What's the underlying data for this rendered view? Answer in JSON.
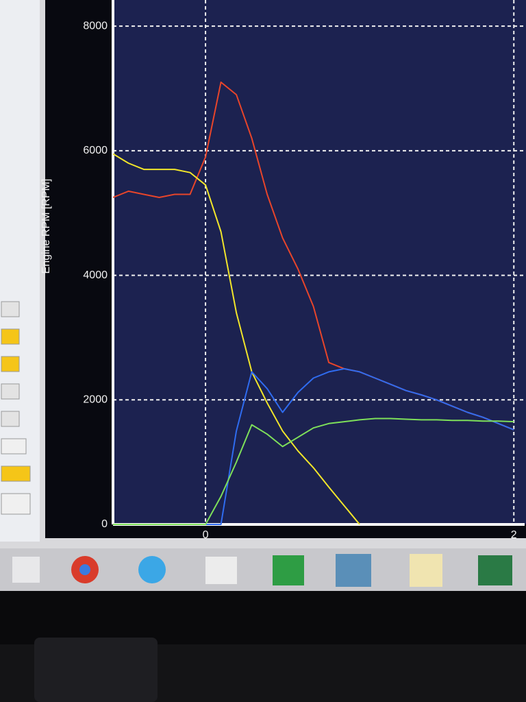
{
  "chart_data": {
    "type": "line",
    "y_label": "Engine RPM [RPM]",
    "x": [
      -0.6,
      -0.5,
      -0.4,
      -0.3,
      -0.2,
      -0.1,
      0,
      0.1,
      0.2,
      0.3,
      0.4,
      0.5,
      0.6,
      0.7,
      0.8,
      0.9,
      1.0,
      1.1,
      1.2,
      1.3,
      1.4,
      1.5,
      1.6,
      1.7,
      1.8,
      1.9,
      2.0
    ],
    "series": [
      {
        "color": "#e8452a",
        "values": [
          5250,
          5350,
          5300,
          5250,
          5300,
          5300,
          5900,
          7100,
          6900,
          6200,
          5300,
          4600,
          4100,
          3500,
          2600,
          2500,
          2450,
          2350,
          2250,
          2150,
          2080,
          2000,
          1900,
          1800,
          1720,
          1620,
          1520
        ]
      },
      {
        "color": "#f2e62a",
        "values": [
          5950,
          5800,
          5700,
          5700,
          5700,
          5650,
          5450,
          4700,
          3400,
          2450,
          1950,
          1500,
          1180,
          910,
          600,
          300,
          0,
          null,
          null,
          null,
          null,
          null,
          null,
          null,
          null,
          null,
          null
        ]
      },
      {
        "color": "#2f6cf0",
        "values": [
          0,
          0,
          0,
          0,
          0,
          0,
          0,
          0,
          1500,
          2450,
          2180,
          1800,
          2120,
          2350,
          2450,
          2500,
          2450,
          2350,
          2250,
          2150,
          2080,
          2000,
          1900,
          1800,
          1720,
          1620,
          1520
        ]
      },
      {
        "color": "#7ee05a",
        "values": [
          0,
          0,
          0,
          0,
          0,
          0,
          0,
          450,
          1000,
          1600,
          1450,
          1250,
          1400,
          1550,
          1620,
          1650,
          1680,
          1700,
          1700,
          1690,
          1680,
          1680,
          1670,
          1670,
          1660,
          1660,
          1650
        ]
      }
    ],
    "xlim": [
      -0.6,
      2.07
    ],
    "ylim": [
      0,
      8200
    ],
    "xticks": [
      0,
      2
    ],
    "yticks": [
      0,
      2000,
      4000,
      6000,
      8000
    ],
    "grid": true
  }
}
